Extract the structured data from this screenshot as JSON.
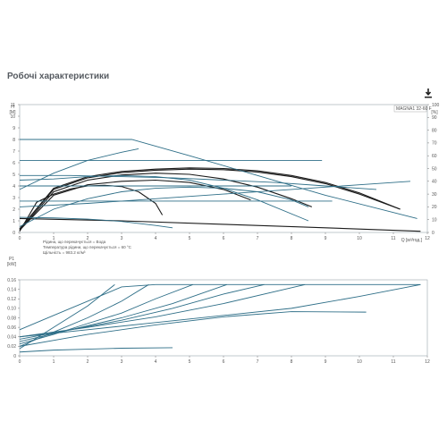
{
  "page": {
    "title": "Робочі характеристики",
    "download_icon": "download-icon"
  },
  "chart_data": [
    {
      "type": "line",
      "title": "",
      "legend_label": "MAGNA1 32-60 F",
      "ylabel_left": "H\n[M]",
      "ylabel_right": "[%]",
      "xlabel": "Q [м³/год.]",
      "xlim": [
        0,
        12
      ],
      "ylim_left": [
        0,
        11
      ],
      "ylim_right": [
        0,
        100
      ],
      "x_ticks": [
        "0",
        "1",
        "2",
        "3",
        "4",
        "5",
        "6",
        "7",
        "8",
        "9",
        "10",
        "11",
        "12"
      ],
      "y_ticks_left": [
        "0",
        "1",
        "2",
        "3",
        "4",
        "5",
        "6",
        "7",
        "8",
        "9",
        "10",
        "11"
      ],
      "y_ticks_right": [
        "0",
        "10",
        "20",
        "30",
        "40",
        "50",
        "60",
        "70",
        "80",
        "90",
        "100"
      ],
      "notes": [
        "Рідина, що перекачується = Вода",
        "Температура рідини, що перекачується = 60 °C",
        "Щільність = 983.2 кг/м³"
      ],
      "series": [
        {
          "style": "head",
          "x": [
            0,
            3,
            6,
            9,
            11.8
          ],
          "y": [
            1.2,
            1.0,
            0.7,
            0.4,
            0.1
          ]
        },
        {
          "style": "head",
          "x": [
            0,
            0.5,
            1,
            1.5,
            2,
            2.5,
            3,
            3.5,
            4,
            4.2
          ],
          "y": [
            0.1,
            2.6,
            3.3,
            3.75,
            4.0,
            4.05,
            3.95,
            3.5,
            2.5,
            1.5
          ]
        },
        {
          "style": "head",
          "x": [
            0,
            1,
            2,
            3,
            4,
            5,
            6,
            6.8
          ],
          "y": [
            0.2,
            3.2,
            4.1,
            4.4,
            4.5,
            4.3,
            3.7,
            2.8
          ]
        },
        {
          "style": "head",
          "x": [
            0,
            1,
            2,
            3,
            4,
            5,
            6,
            7,
            8,
            8.6
          ],
          "y": [
            0.2,
            3.5,
            4.5,
            4.95,
            5.1,
            5.0,
            4.6,
            3.9,
            2.9,
            2.2
          ]
        },
        {
          "style": "head",
          "x": [
            0,
            1,
            2,
            3,
            4,
            5,
            6,
            7,
            8,
            9,
            10,
            11.2
          ],
          "y": [
            0.3,
            3.7,
            4.7,
            5.15,
            5.35,
            5.45,
            5.4,
            5.2,
            4.8,
            4.2,
            3.3,
            2.0
          ]
        },
        {
          "style": "head",
          "x": [
            0,
            1,
            2,
            3,
            4,
            5,
            6,
            7,
            8,
            9,
            10,
            11.2
          ],
          "y": [
            0.3,
            3.8,
            4.8,
            5.25,
            5.45,
            5.55,
            5.5,
            5.3,
            4.9,
            4.3,
            3.4,
            2.0
          ]
        },
        {
          "style": "blue",
          "x": [
            0,
            1,
            2,
            3,
            4,
            4.5
          ],
          "y": [
            1.3,
            1.25,
            1.15,
            0.95,
            0.6,
            0.4
          ]
        },
        {
          "style": "blue",
          "x": [
            0,
            1,
            2,
            3,
            4,
            5,
            6,
            7,
            8,
            9.2
          ],
          "y": [
            2.7,
            2.7,
            2.7,
            2.7,
            2.7,
            2.7,
            2.7,
            2.7,
            2.7,
            2.7
          ]
        },
        {
          "style": "blue",
          "x": [
            0,
            1,
            2,
            3,
            4,
            5,
            6,
            7,
            8
          ],
          "y": [
            4.0,
            4.0,
            4.0,
            4.0,
            4.0,
            4.0,
            4.0,
            4.0,
            4.0
          ]
        },
        {
          "style": "blue",
          "x": [
            0,
            1,
            2,
            3,
            3.3,
            5,
            7,
            9,
            11.7
          ],
          "y": [
            8.0,
            8.0,
            8.0,
            8.0,
            8.0,
            6.6,
            4.9,
            3.2,
            1.2
          ]
        },
        {
          "style": "blue",
          "x": [
            0,
            2,
            4,
            6,
            8,
            8.9
          ],
          "y": [
            6.2,
            6.2,
            6.2,
            6.2,
            6.2,
            6.2
          ]
        },
        {
          "style": "blue",
          "x": [
            0,
            1,
            2,
            3,
            4,
            5,
            6,
            7,
            8.5
          ],
          "y": [
            4.5,
            4.6,
            4.8,
            4.9,
            4.8,
            4.5,
            3.8,
            2.8,
            1.0
          ]
        },
        {
          "style": "blue",
          "x": [
            0,
            2,
            4,
            6,
            8,
            10,
            11.5
          ],
          "y": [
            2.2,
            2.5,
            2.9,
            3.3,
            3.7,
            4.1,
            4.4
          ]
        },
        {
          "style": "blue",
          "x": [
            0,
            1.5,
            3,
            4.5,
            6,
            7.5,
            9,
            10.5
          ],
          "y": [
            4.9,
            4.9,
            4.8,
            4.7,
            4.5,
            4.3,
            4.0,
            3.7
          ]
        },
        {
          "style": "blue",
          "x": [
            0,
            1,
            2,
            3,
            3.5
          ],
          "y": [
            3.7,
            5.1,
            6.2,
            6.9,
            7.2
          ]
        },
        {
          "style": "blue",
          "x": [
            0,
            1,
            2,
            3,
            4,
            5,
            6,
            7,
            8,
            8.5
          ],
          "y": [
            0.5,
            2.0,
            2.9,
            3.5,
            3.8,
            3.9,
            3.8,
            3.5,
            2.8,
            2.2
          ]
        }
      ]
    },
    {
      "type": "line",
      "title": "",
      "ylabel_left": "P1\n[kW]",
      "xlim": [
        0,
        12
      ],
      "ylim": [
        0,
        0.16
      ],
      "x_ticks": [
        "0",
        "1",
        "2",
        "3",
        "4",
        "5",
        "6",
        "7",
        "8",
        "9",
        "10",
        "11",
        "12"
      ],
      "y_ticks": [
        "0",
        "0.02",
        "0.04",
        "0.06",
        "0.08",
        "0.10",
        "0.12",
        "0.14",
        "0.16"
      ],
      "series": [
        {
          "x": [
            0,
            1,
            2,
            3,
            4.5
          ],
          "y": [
            0.008,
            0.012,
            0.014,
            0.016,
            0.017
          ]
        },
        {
          "x": [
            0,
            2,
            4,
            6,
            8,
            10.2
          ],
          "y": [
            0.02,
            0.045,
            0.065,
            0.082,
            0.093,
            0.092
          ]
        },
        {
          "x": [
            0,
            1,
            2,
            3,
            4,
            5.1
          ],
          "y": [
            0.025,
            0.045,
            0.068,
            0.09,
            0.12,
            0.15
          ]
        },
        {
          "x": [
            0,
            1.5,
            3,
            4.5,
            6.1
          ],
          "y": [
            0.03,
            0.055,
            0.08,
            0.11,
            0.15
          ]
        },
        {
          "x": [
            0,
            1.5,
            3,
            4.5,
            6,
            7.2
          ],
          "y": [
            0.035,
            0.055,
            0.075,
            0.1,
            0.13,
            0.15
          ]
        },
        {
          "x": [
            0,
            2,
            4,
            6,
            8.4
          ],
          "y": [
            0.04,
            0.06,
            0.082,
            0.11,
            0.15
          ]
        },
        {
          "x": [
            0,
            2,
            4,
            6,
            8,
            10,
            11.8
          ],
          "y": [
            0.04,
            0.055,
            0.07,
            0.085,
            0.1,
            0.125,
            0.15
          ]
        },
        {
          "x": [
            0,
            1,
            2,
            3,
            4,
            6,
            8,
            10,
            11.8
          ],
          "y": [
            0.055,
            0.085,
            0.115,
            0.145,
            0.15,
            0.15,
            0.15,
            0.15,
            0.15
          ]
        },
        {
          "x": [
            0,
            1,
            2,
            3,
            3.8
          ],
          "y": [
            0.02,
            0.05,
            0.08,
            0.115,
            0.15
          ]
        },
        {
          "x": [
            0,
            1,
            2,
            2.8
          ],
          "y": [
            0.015,
            0.06,
            0.105,
            0.15
          ]
        }
      ]
    }
  ]
}
